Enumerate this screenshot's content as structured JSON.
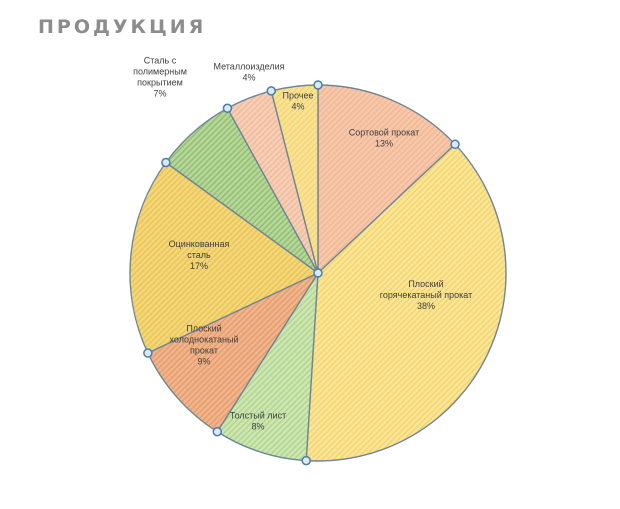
{
  "chart_title": "ПРОДУКЦИЯ",
  "chart_data": {
    "type": "pie",
    "title": "ПРОДУКЦИЯ",
    "categories": [
      "Сортовой прокат",
      "Плоский горячекатаный прокат",
      "Толстый лист",
      "Плоский холоднокатаный прокат",
      "Оцинкованная сталь",
      "Сталь с полимерным покрытием",
      "Металлоизделия",
      "Прочее"
    ],
    "values": [
      13,
      38,
      8,
      9,
      17,
      7,
      4,
      4
    ],
    "labels": [
      [
        "Сортовой прокат",
        "13%"
      ],
      [
        "Плоский",
        "горячекатаный прокат",
        "38%"
      ],
      [
        "Толстый лист",
        "8%"
      ],
      [
        "Плоский",
        "холоднокатаный",
        "прокат",
        "9%"
      ],
      [
        "Оцинкованная",
        "сталь",
        "17%"
      ],
      [
        "Сталь с",
        "полимерным",
        "покрытием",
        "7%"
      ],
      [
        "Металлоизделия",
        "4%"
      ],
      [
        "Прочее",
        "4%"
      ]
    ],
    "colors": [
      "#f6c9ad",
      "#fbe59a",
      "#cfe6b3",
      "#f0b58c",
      "#f4d77d",
      "#b8d69c",
      "#f7cfb7",
      "#fbe29b"
    ],
    "hatch_colors": [
      "#f3b592",
      "#f3d466",
      "#aed58e",
      "#e89b6b",
      "#e9c451",
      "#8fbf6d",
      "#f0b99a",
      "#f4d56a"
    ],
    "legend": "none",
    "selected": true
  }
}
